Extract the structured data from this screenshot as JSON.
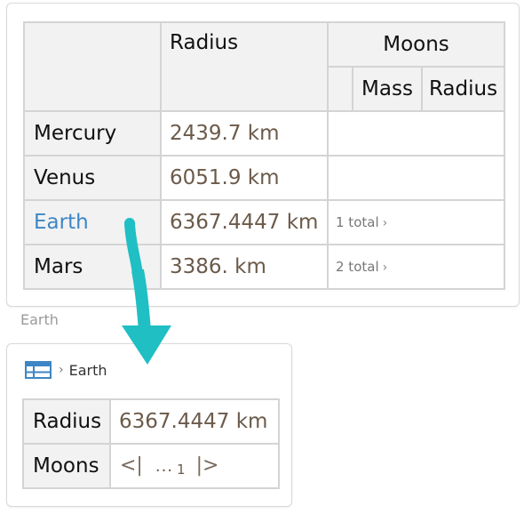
{
  "main_table": {
    "header": {
      "radius": "Radius",
      "moons": "Moons",
      "mass": "Mass",
      "moon_radius": "Radius"
    },
    "rows": [
      {
        "name": "Mercury",
        "radius": "2439.7 km",
        "moons": ""
      },
      {
        "name": "Venus",
        "radius": "6051.9 km",
        "moons": ""
      },
      {
        "name": "Earth",
        "radius": "6367.4447 km",
        "moons": "1 total"
      },
      {
        "name": "Mars",
        "radius": "3386. km",
        "moons": "2 total"
      }
    ]
  },
  "caption": "Earth",
  "detail": {
    "breadcrumb": "Earth",
    "rows": [
      {
        "label": "Radius",
        "value": "6367.4447 km"
      },
      {
        "label": "Moons"
      }
    ],
    "pager": {
      "first": "<|",
      "ellipsis": "...",
      "count": "1",
      "last": "|>"
    }
  },
  "colors": {
    "link": "#3c86c5",
    "value_text": "#6b5a4a",
    "arrow": "#1fbfc4",
    "icon": "#3c86c5"
  },
  "icons": {
    "dataset": "table-grid-icon",
    "breadcrumb_separator": "chevron-right-icon",
    "moon_expand": "chevron-right-icon"
  }
}
